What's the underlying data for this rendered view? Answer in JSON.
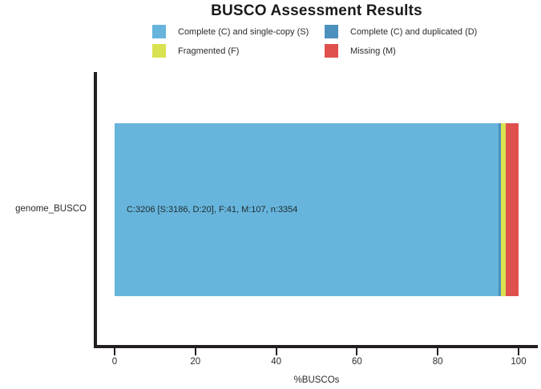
{
  "title": "BUSCO Assessment Results",
  "legend": [
    {
      "key": "complete-single",
      "label": "Complete (C) and single-copy (S)",
      "color": "#67b5dc"
    },
    {
      "key": "complete-duplicated",
      "label": "Complete (C) and duplicated (D)",
      "color": "#4c90be"
    },
    {
      "key": "fragmented",
      "label": "Fragmented (F)",
      "color": "#d8e14f"
    },
    {
      "key": "missing",
      "label": "Missing (M)",
      "color": "#e0504d"
    }
  ],
  "chart_data": {
    "type": "bar",
    "orientation": "horizontal-stacked",
    "title": "BUSCO Assessment Results",
    "categories": [
      "genome_BUSCO"
    ],
    "series": [
      {
        "key": "complete-single",
        "name": "Complete (C) and single-copy (S)",
        "count": 3186,
        "values": [
          94.99
        ],
        "color": "#67b5dc"
      },
      {
        "key": "complete-duplicated",
        "name": "Complete (C) and duplicated (D)",
        "count": 20,
        "values": [
          0.6
        ],
        "color": "#4c90be"
      },
      {
        "key": "fragmented",
        "name": "Fragmented (F)",
        "count": 41,
        "values": [
          1.22
        ],
        "color": "#d8e14f"
      },
      {
        "key": "missing",
        "name": "Missing (M)",
        "count": 107,
        "values": [
          3.19
        ],
        "color": "#e0504d"
      }
    ],
    "total_buscos": 3354,
    "bar_annotation": "C:3206 [S:3186, D:20], F:41, M:107, n:3354",
    "xlabel": "%BUSCOs",
    "xlim": [
      0,
      100
    ],
    "xticks": [
      0,
      20,
      40,
      60,
      80,
      100
    ],
    "legend_position": "top",
    "grid": false,
    "axis_color": "#231f20"
  }
}
